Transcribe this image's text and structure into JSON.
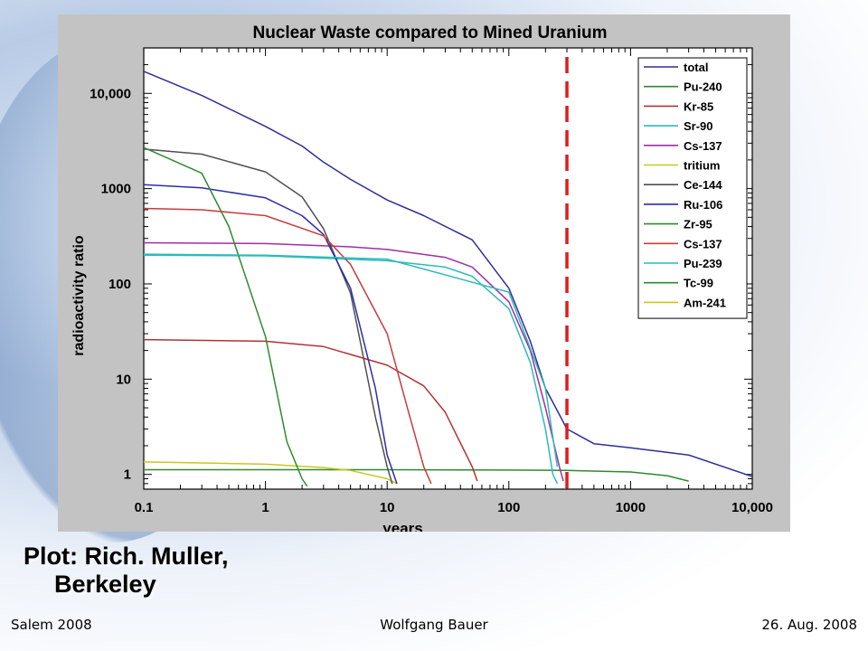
{
  "chart_data": {
    "type": "line",
    "title": "Nuclear Waste compared to Mined Uranium",
    "xlabel": "years",
    "ylabel": "radioactivity ratio",
    "xscale": "log",
    "yscale": "log",
    "xlim": [
      0.1,
      10000
    ],
    "ylim": [
      0.7,
      30000
    ],
    "x_ticks": [
      {
        "value": 0.1,
        "label": "0.1"
      },
      {
        "value": 1,
        "label": "1"
      },
      {
        "value": 10,
        "label": "10"
      },
      {
        "value": 100,
        "label": "100"
      },
      {
        "value": 1000,
        "label": "1000"
      },
      {
        "value": 10000,
        "label": "10,000"
      }
    ],
    "y_ticks": [
      {
        "value": 1,
        "label": "1"
      },
      {
        "value": 10,
        "label": "10"
      },
      {
        "value": 100,
        "label": "100"
      },
      {
        "value": 1000,
        "label": "1000"
      },
      {
        "value": 10000,
        "label": "10,000"
      }
    ],
    "grid": false,
    "legend_position": "top-right",
    "reference_line": {
      "x": 300,
      "style": "dashed",
      "color": "#e21b1b"
    },
    "series": [
      {
        "name": "total",
        "color": "#2e2e9a",
        "points": [
          [
            0.1,
            17000
          ],
          [
            0.3,
            9500
          ],
          [
            1,
            4500
          ],
          [
            2,
            2800
          ],
          [
            3,
            1900
          ],
          [
            5,
            1250
          ],
          [
            10,
            760
          ],
          [
            20,
            520
          ],
          [
            50,
            290
          ],
          [
            100,
            90
          ],
          [
            150,
            25
          ],
          [
            200,
            8
          ],
          [
            300,
            3
          ],
          [
            500,
            2.1
          ],
          [
            1000,
            1.9
          ],
          [
            3000,
            1.6
          ],
          [
            10000,
            0.95
          ]
        ]
      },
      {
        "name": "Pu-240",
        "color": "#2e8a2e",
        "points": [
          [
            0.1,
            1.12
          ],
          [
            1,
            1.12
          ],
          [
            10,
            1.12
          ],
          [
            100,
            1.11
          ],
          [
            300,
            1.1
          ],
          [
            1000,
            1.06
          ],
          [
            2000,
            0.97
          ],
          [
            3000,
            0.85
          ]
        ]
      },
      {
        "name": "Kr-85",
        "color": "#b43232",
        "points": [
          [
            0.1,
            26
          ],
          [
            1,
            25
          ],
          [
            3,
            22
          ],
          [
            10,
            14
          ],
          [
            20,
            8.5
          ],
          [
            30,
            4.5
          ],
          [
            50,
            1.2
          ],
          [
            55,
            0.85
          ]
        ]
      },
      {
        "name": "Sr-90",
        "color": "#2ebaba",
        "points": [
          [
            0.1,
            200
          ],
          [
            1,
            197
          ],
          [
            10,
            175
          ],
          [
            30,
            150
          ],
          [
            50,
            120
          ],
          [
            100,
            55
          ],
          [
            150,
            15
          ],
          [
            200,
            3
          ],
          [
            230,
            1
          ],
          [
            250,
            0.8
          ]
        ]
      },
      {
        "name": "Cs-137",
        "color": "#a02ea8",
        "points": [
          [
            0.1,
            270
          ],
          [
            1,
            265
          ],
          [
            5,
            245
          ],
          [
            10,
            230
          ],
          [
            30,
            190
          ],
          [
            50,
            150
          ],
          [
            100,
            65
          ],
          [
            150,
            20
          ],
          [
            200,
            5
          ],
          [
            260,
            1.2
          ],
          [
            280,
            0.85
          ]
        ]
      },
      {
        "name": "tritium",
        "color": "#c8c81e",
        "points": [
          [
            0.1,
            1.35
          ],
          [
            0.3,
            1.32
          ],
          [
            1,
            1.28
          ],
          [
            3,
            1.18
          ],
          [
            5,
            1.1
          ],
          [
            10,
            0.9
          ],
          [
            12,
            0.8
          ]
        ]
      },
      {
        "name": "Ce-144",
        "color": "#505050",
        "points": [
          [
            0.1,
            2600
          ],
          [
            0.3,
            2300
          ],
          [
            1,
            1500
          ],
          [
            2,
            820
          ],
          [
            3,
            380
          ],
          [
            5,
            80
          ],
          [
            8,
            4
          ],
          [
            10,
            1.2
          ],
          [
            11,
            0.8
          ]
        ]
      },
      {
        "name": "Ru-106",
        "color": "#2c2cab",
        "points": [
          [
            0.1,
            1100
          ],
          [
            0.3,
            1020
          ],
          [
            1,
            800
          ],
          [
            2,
            520
          ],
          [
            3,
            330
          ],
          [
            5,
            90
          ],
          [
            8,
            8
          ],
          [
            10,
            1.6
          ],
          [
            12,
            0.8
          ]
        ]
      },
      {
        "name": "Zr-95",
        "color": "#2e8a2e",
        "points": [
          [
            0.1,
            2700
          ],
          [
            0.3,
            1450
          ],
          [
            0.5,
            400
          ],
          [
            1,
            28
          ],
          [
            1.5,
            2.2
          ],
          [
            2,
            0.9
          ],
          [
            2.2,
            0.75
          ]
        ]
      },
      {
        "name": "Cs-137",
        "color": "#c83c3c",
        "points": [
          [
            0.1,
            620
          ],
          [
            0.3,
            600
          ],
          [
            1,
            520
          ],
          [
            3,
            320
          ],
          [
            5,
            160
          ],
          [
            10,
            30
          ],
          [
            15,
            4.5
          ],
          [
            20,
            1.2
          ],
          [
            23,
            0.8
          ]
        ]
      },
      {
        "name": "Pu-239",
        "color": "#2ebaba",
        "points": [
          [
            0.1,
            205
          ],
          [
            1,
            200
          ],
          [
            10,
            182
          ],
          [
            100,
            82
          ],
          [
            200,
            8
          ],
          [
            250,
            1.2
          ]
        ]
      },
      {
        "name": "Tc-99",
        "color": "#2e8a2e",
        "points": []
      },
      {
        "name": "Am-241",
        "color": "#c8c81e",
        "points": []
      }
    ]
  },
  "credit": {
    "line1": "Plot: Rich. Muller,",
    "line2": "Berkeley"
  },
  "footer": {
    "left": "Salem 2008",
    "center": "Wolfgang Bauer",
    "right": "26. Aug. 2008"
  }
}
